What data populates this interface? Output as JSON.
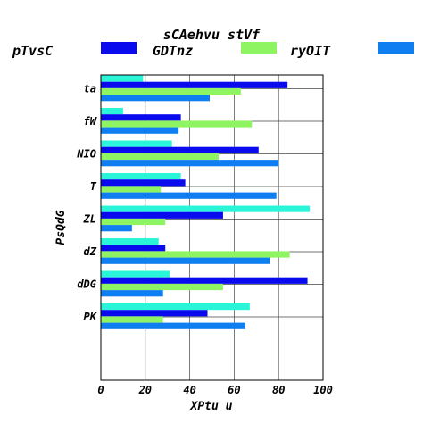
{
  "chart_data": {
    "type": "bar",
    "orientation": "horizontal",
    "title": "sCAehvu stVf",
    "xlabel": "XPtu u",
    "ylabel": "PsQdG",
    "xlim": [
      0,
      100
    ],
    "xticks": [
      "0",
      "20",
      "40",
      "60",
      "80",
      "100"
    ],
    "grid": true,
    "legend_position": "top",
    "categories": [
      "ta",
      "fW",
      "NIO",
      "T",
      "ZL",
      "dZ",
      "dDG",
      "PK"
    ],
    "series": [
      {
        "name": "pTvsC",
        "color": "#2af5d8",
        "values": [
          19,
          10,
          32,
          36,
          94,
          26,
          31,
          67
        ]
      },
      {
        "name": "GDTnz",
        "color": "#0a0aee",
        "values": [
          84,
          36,
          71,
          38,
          55,
          29,
          93,
          48
        ]
      },
      {
        "name": "ryOIT",
        "color": "#8ef462",
        "values": [
          63,
          68,
          53,
          27,
          29,
          85,
          55,
          28
        ]
      },
      {
        "name": "",
        "color": "#0f7ef0",
        "values": [
          49,
          35,
          80,
          79,
          14,
          76,
          28,
          65
        ]
      }
    ]
  }
}
